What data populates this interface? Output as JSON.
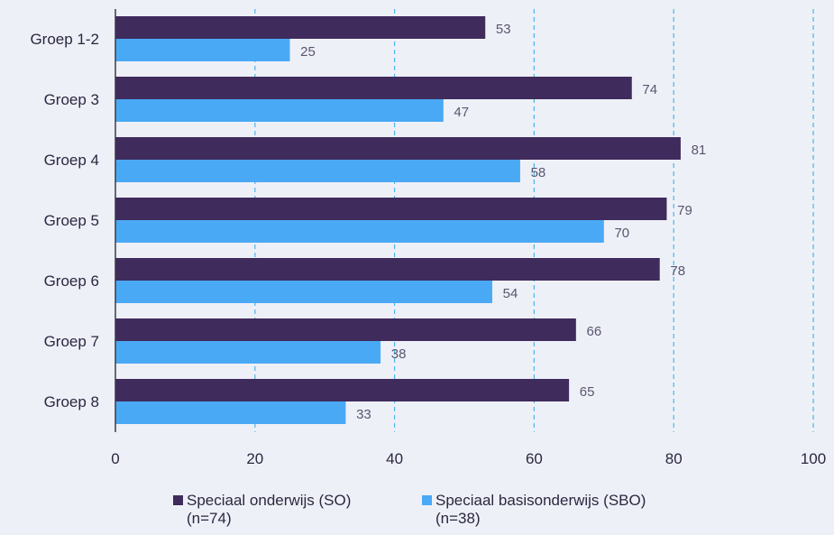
{
  "colors": {
    "background": "#eef0f7",
    "series_so": "#3f2b5c",
    "series_sbo": "#4aa9f5",
    "grid": "#4bb4e6",
    "axis": "#3a3a4a",
    "text": "#2b2740",
    "value_label": "#5a5670"
  },
  "chart_data": {
    "type": "bar",
    "orientation": "horizontal",
    "categories": [
      "Groep 1-2",
      "Groep 3",
      "Groep 4",
      "Groep 5",
      "Groep 6",
      "Groep 7",
      "Groep 8"
    ],
    "series": [
      {
        "name": "Speciaal onderwijs (SO)",
        "note": "(n=74)",
        "values": [
          53,
          74,
          81,
          79,
          78,
          66,
          65
        ]
      },
      {
        "name": "Speciaal basisonderwijs (SBO)",
        "note": "(n=38)",
        "values": [
          25,
          47,
          58,
          70,
          54,
          38,
          33
        ]
      }
    ],
    "xlim": [
      0,
      100
    ],
    "xticks": [
      0,
      20,
      40,
      60,
      80,
      100
    ],
    "grid": "vertical dashed",
    "legend": "bottom"
  },
  "legend": [
    {
      "label": "Speciaal onderwijs (SO)",
      "sub": "(n=74)"
    },
    {
      "label": "Speciaal basisonderwijs (SBO)",
      "sub": "(n=38)"
    }
  ]
}
